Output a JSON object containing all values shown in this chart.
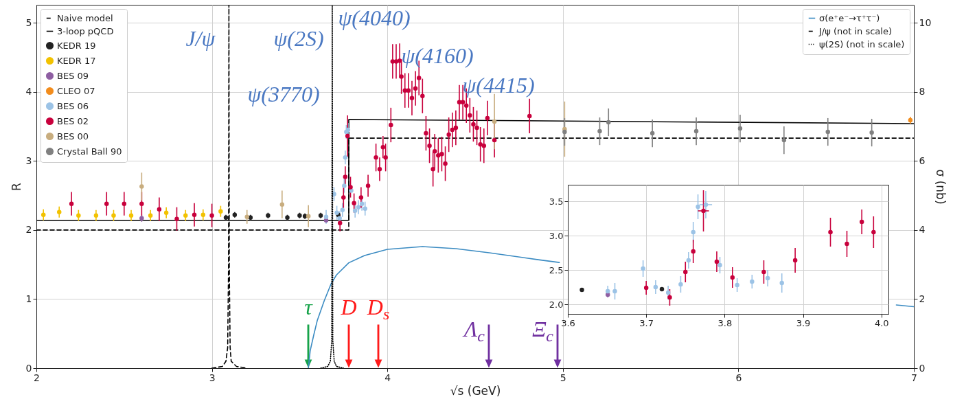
{
  "chart_data": [
    {
      "type": "scatter",
      "xlabel": "√s (GeV)",
      "ylabel": "R",
      "y2label": "σ (nb)",
      "xlim": [
        2,
        7
      ],
      "xticks": [
        2,
        3,
        4,
        5,
        6,
        7
      ],
      "ylim": [
        0,
        5.26
      ],
      "yticks": [
        0,
        1,
        2,
        3,
        4,
        5
      ],
      "y2lim": [
        0,
        10.52
      ],
      "y2ticks": [
        0,
        2,
        4,
        6,
        8,
        10
      ],
      "grid": true,
      "legend": "top left",
      "marker": "circle",
      "series": [
        {
          "name": "Naive model",
          "type": "line",
          "marker": "none",
          "line_style": "dashed",
          "color": "#000000",
          "x": [
            2,
            3.78,
            3.78,
            7
          ],
          "values": [
            2,
            2,
            3.33,
            3.33
          ]
        },
        {
          "name": "3-loop pQCD",
          "type": "line",
          "marker": "none",
          "line_style": "solid",
          "color": "#000000",
          "x": [
            2,
            3.78,
            3.78,
            7
          ],
          "values": [
            2.14,
            2.14,
            3.6,
            3.54
          ]
        },
        {
          "name": "KEDR 19",
          "color": "#222222",
          "x": [
            3.08,
            3.13,
            3.22,
            3.32,
            3.43,
            3.5,
            3.53,
            3.62,
            3.72
          ],
          "values": [
            2.18,
            2.22,
            2.18,
            2.21,
            2.18,
            2.21,
            2.2,
            2.21,
            2.22
          ],
          "errors": [
            0.04,
            0.04,
            0.04,
            0.04,
            0.04,
            0.04,
            0.04,
            0.04,
            0.04
          ]
        },
        {
          "name": "KEDR 17",
          "color": "#f2c200",
          "x": [
            2.04,
            2.13,
            2.24,
            2.34,
            2.44,
            2.54,
            2.65,
            2.74,
            2.85,
            2.95,
            3.05
          ],
          "values": [
            2.22,
            2.26,
            2.21,
            2.21,
            2.21,
            2.21,
            2.21,
            2.25,
            2.21,
            2.22,
            2.27
          ],
          "errors": [
            0.08,
            0.08,
            0.08,
            0.08,
            0.08,
            0.08,
            0.08,
            0.08,
            0.08,
            0.08,
            0.08
          ]
        },
        {
          "name": "BES 09",
          "color": "#8e5ea2",
          "x": [
            2.6,
            3.651
          ],
          "values": [
            2.17,
            2.14
          ],
          "errors": [
            0.05,
            0.04
          ]
        },
        {
          "name": "CLEO 07",
          "color": "#f28c1c",
          "x": [
            6.98
          ],
          "values": [
            3.59
          ],
          "errors": [
            0.05
          ]
        },
        {
          "name": "BES 06",
          "color": "#9cc3e6",
          "x": [
            3.651,
            3.66,
            3.696,
            3.712,
            3.728,
            3.744,
            3.754,
            3.76,
            3.766,
            3.776,
            3.794,
            3.816,
            3.835,
            3.855,
            3.873
          ],
          "values": [
            2.19,
            null,
            2.52,
            2.25,
            2.17,
            2.29,
            2.64,
            3.05,
            3.42,
            3.45,
            2.57,
            2.28,
            2.33,
            2.38,
            2.31
          ],
          "errors": [
            0.1,
            null,
            0.1,
            0.1,
            0.1,
            0.1,
            0.1,
            0.1,
            0.1,
            0.1,
            null,
            0.1,
            0.1,
            0.1,
            0.1
          ]
        },
        {
          "name": "BES 02",
          "color": "#c8003c",
          "x": [
            2.2,
            2.4,
            2.5,
            2.6,
            2.7,
            2.8,
            2.9,
            3.0,
            3.7,
            3.73,
            3.75,
            3.76,
            3.773,
            3.79,
            3.81,
            3.85,
            3.89,
            3.935,
            3.956,
            3.975,
            3.99,
            4.02,
            4.03,
            4.05,
            4.07,
            4.08,
            4.1,
            4.12,
            4.14,
            4.16,
            4.18,
            4.2,
            4.22,
            4.24,
            4.26,
            4.27,
            4.29,
            4.31,
            4.33,
            4.35,
            4.37,
            4.39,
            4.41,
            4.43,
            4.45,
            4.47,
            4.49,
            4.51,
            4.53,
            4.55,
            4.57,
            4.61,
            4.81
          ],
          "values": [
            2.38,
            2.38,
            2.38,
            2.38,
            2.3,
            2.16,
            2.22,
            2.21,
            null,
            2.1,
            2.47,
            2.77,
            3.36,
            2.62,
            2.39,
            2.47,
            2.64,
            3.05,
            2.88,
            3.2,
            3.05,
            3.52,
            4.44,
            4.44,
            4.45,
            4.22,
            4.02,
            4.02,
            3.91,
            4.05,
            4.2,
            3.94,
            3.4,
            3.22,
            2.88,
            3.14,
            3.08,
            3.1,
            2.96,
            3.38,
            3.45,
            3.48,
            3.85,
            3.85,
            3.8,
            3.66,
            3.53,
            3.48,
            3.24,
            3.22,
            3.62,
            3.3,
            3.65
          ],
          "errors": [
            0.17,
            0.17,
            0.17,
            0.17,
            0.17,
            0.17,
            0.17,
            0.17,
            null,
            0.12,
            0.15,
            0.15,
            0.3,
            0.15,
            0.14,
            0.15,
            0.16,
            0.2,
            0.17,
            0.16,
            0.2,
            0.25,
            0.25,
            0.25,
            0.25,
            0.25,
            0.25,
            0.25,
            0.25,
            0.25,
            0.25,
            0.25,
            0.25,
            0.25,
            0.25,
            0.25,
            0.25,
            0.25,
            0.25,
            0.25,
            0.25,
            0.25,
            0.25,
            0.25,
            0.25,
            0.25,
            0.25,
            0.25,
            0.25,
            0.25,
            0.25,
            0.25,
            0.25
          ]
        },
        {
          "name": "BES 00",
          "color": "#c8ad7f",
          "x": [
            2.6,
            3.2,
            3.4,
            3.55,
            4.61,
            5.01
          ],
          "values": [
            2.63,
            2.19,
            2.37,
            2.2,
            3.57,
            3.46
          ],
          "errors": [
            0.2,
            0.1,
            0.2,
            0.16,
            0.4,
            0.4
          ]
        },
        {
          "name": "Crystal Ball 90",
          "color": "#808080",
          "x": [
            5.01,
            5.21,
            5.26,
            5.51,
            5.76,
            6.01,
            6.26,
            6.51,
            6.76
          ],
          "values": [
            3.42,
            3.43,
            3.56,
            3.4,
            3.43,
            3.47,
            3.3,
            3.42,
            3.41
          ],
          "errors": [
            0.2,
            0.2,
            0.2,
            0.2,
            0.2,
            0.2,
            0.2,
            0.2,
            0.2
          ]
        },
        {
          "name": "σ(e⁺e⁻→τ⁺τ⁻)",
          "type": "line",
          "marker": "none",
          "axis": "y2",
          "line_style": "solid",
          "color": "#3b8bc2",
          "x": [
            3.55,
            3.56,
            3.58,
            3.6,
            3.64,
            3.68,
            3.71,
            3.78,
            3.87,
            4.0,
            4.2,
            4.39,
            4.58,
            4.86,
            4.98,
            5.5,
            6.9,
            7.0
          ],
          "values": [
            0,
            0.5,
            0.95,
            1.37,
            1.95,
            2.45,
            2.7,
            3.05,
            3.26,
            3.44,
            3.52,
            3.46,
            3.34,
            3.14,
            3.06,
            null,
            1.83,
            1.78
          ]
        },
        {
          "name": "J/ψ (not in scale)",
          "type": "line",
          "marker": "none",
          "axis": "y2",
          "line_style": "dashed",
          "color": "#000000",
          "x": [
            3.0,
            3.06,
            3.08,
            3.09,
            3.095,
            3.097,
            3.099,
            3.104,
            3.11,
            3.14,
            3.2
          ],
          "values": [
            0,
            0.05,
            0.2,
            0.6,
            3,
            10.52,
            3,
            0.6,
            0.2,
            0.05,
            0
          ]
        },
        {
          "name": "ψ(2S) (not in scale)",
          "type": "line",
          "marker": "none",
          "axis": "y2",
          "line_style": "dotted",
          "color": "#000000",
          "x": [
            3.62,
            3.66,
            3.675,
            3.683,
            3.686,
            3.689,
            3.697,
            3.71,
            3.75
          ],
          "values": [
            0,
            0.05,
            0.2,
            0.8,
            10.52,
            0.8,
            0.2,
            0.05,
            0
          ]
        }
      ],
      "annotations": [
        "J/ψ",
        "ψ(2S)",
        "ψ(4040)",
        "ψ(4160)",
        "ψ(4415)",
        "ψ(3770)",
        "τ",
        "D",
        "D$_{s}$",
        "Λ$_{c}$",
        "Ξ$_{c}$"
      ]
    },
    {
      "type": "scatter",
      "xlim": [
        3.6,
        4.009
      ],
      "xticks": [
        3.6,
        3.7,
        3.8,
        3.9,
        {
          "value": 4.0,
          "label": "4.0"
        }
      ],
      "ylim": [
        1.86,
        3.74
      ],
      "yticks": [
        {
          "value": 2,
          "label": "2.0"
        },
        2.5,
        {
          "value": 3,
          "label": "3.0"
        },
        3.5
      ],
      "grid": true,
      "marker": "circle",
      "series": [
        {
          "color": "#222222",
          "x": [
            3.618,
            3.72
          ],
          "values": [
            2.21,
            2.22
          ],
          "errors": [
            0.03,
            0.03
          ]
        },
        {
          "color": "#8e5ea2",
          "x": [
            3.651
          ],
          "values": [
            2.14
          ],
          "errors": [
            0.04
          ]
        },
        {
          "color": "#9cc3e6",
          "x": [
            3.651,
            3.66,
            3.696,
            3.712,
            3.728,
            3.744,
            3.754,
            3.76,
            3.766,
            3.776,
            3.794,
            3.816,
            3.835,
            3.855,
            3.873
          ],
          "values": [
            2.19,
            2.19,
            2.52,
            2.25,
            2.17,
            2.29,
            2.64,
            3.05,
            3.42,
            3.45,
            2.57,
            2.28,
            2.33,
            2.38,
            2.31
          ],
          "errors": [
            0.08,
            0.12,
            0.12,
            0.1,
            0.1,
            0.12,
            0.12,
            0.15,
            0.18,
            0.2,
            0.12,
            0.1,
            0.1,
            0.12,
            0.14
          ],
          "xerrors": [
            null,
            null,
            null,
            null,
            null,
            null,
            null,
            null,
            null,
            0.008,
            null,
            null,
            null,
            null,
            null
          ]
        },
        {
          "color": "#c8003c",
          "x": [
            3.7,
            3.73,
            3.75,
            3.76,
            3.773,
            3.79,
            3.81,
            3.85,
            3.89,
            3.935,
            3.956,
            3.975,
            3.99
          ],
          "values": [
            2.24,
            2.1,
            2.47,
            2.77,
            3.36,
            2.62,
            2.39,
            2.47,
            2.64,
            3.05,
            2.88,
            3.2,
            3.05
          ],
          "errors": [
            0.1,
            0.12,
            0.15,
            0.17,
            0.3,
            0.15,
            0.15,
            0.17,
            0.18,
            0.21,
            0.19,
            0.18,
            0.23
          ],
          "xerrors": [
            null,
            null,
            null,
            null,
            0.007,
            null,
            null,
            null,
            null,
            null,
            null,
            null,
            null
          ]
        }
      ]
    }
  ]
}
